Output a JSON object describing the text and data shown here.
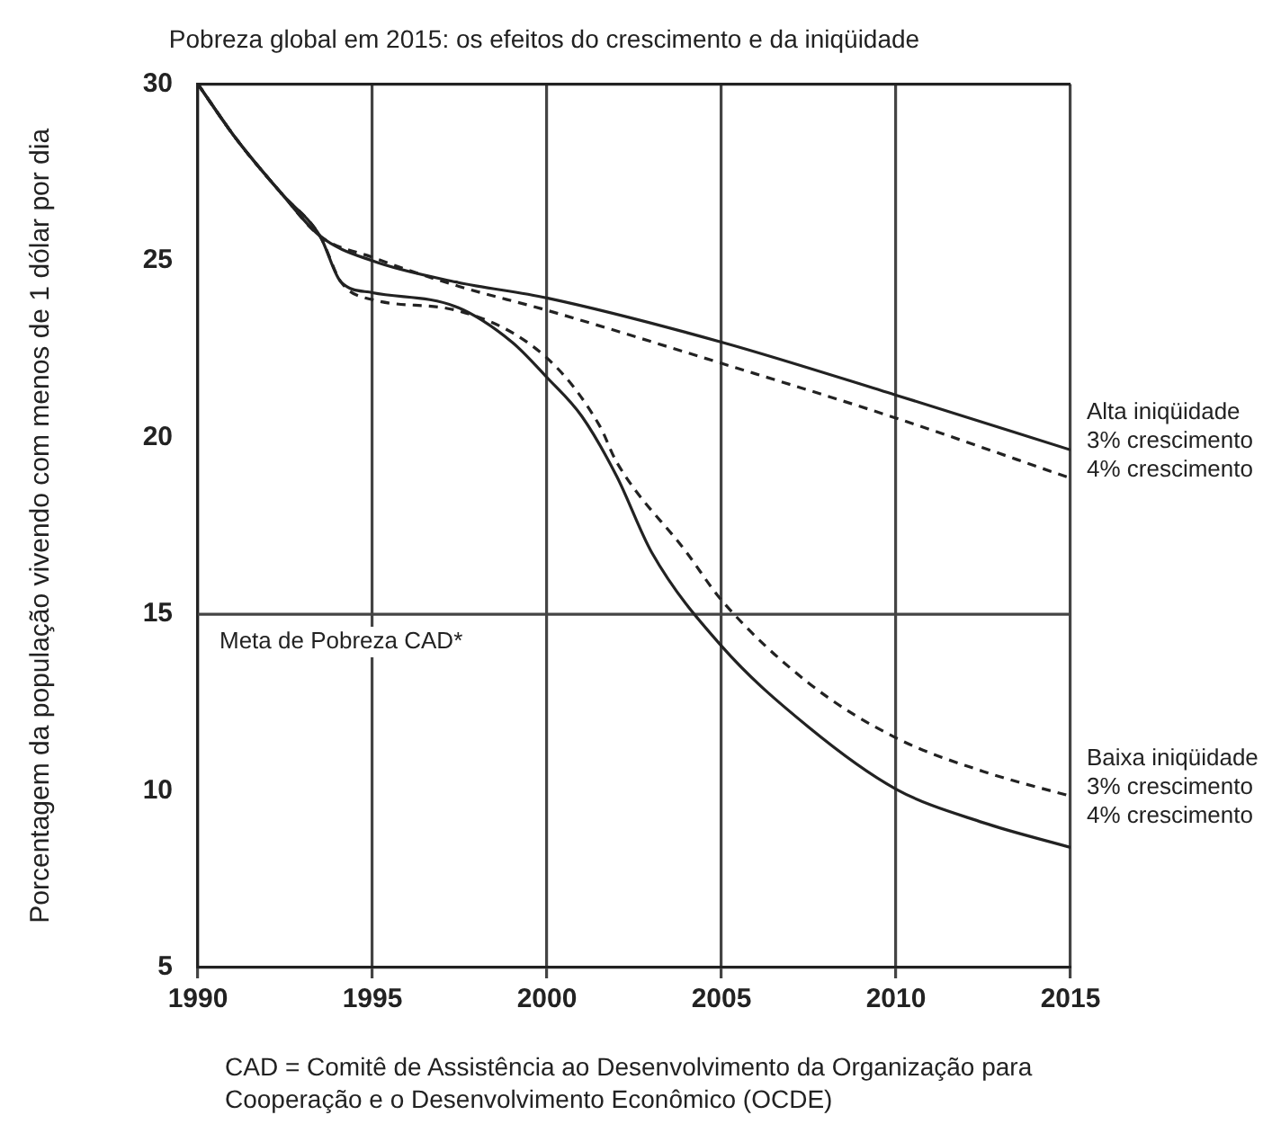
{
  "chart_data": {
    "type": "line",
    "title": "Pobreza global em 2015: os efeitos do crescimento e da iniqüidade",
    "ylabel": "Porcentagem da população vivendo com menos de 1 dólar por dia",
    "xlim": [
      1990,
      2015
    ],
    "xticks": [
      1990,
      1995,
      2000,
      2005,
      2010,
      2015
    ],
    "ylim": [
      5,
      30
    ],
    "yticks": [
      5,
      10,
      15,
      20,
      25,
      30
    ],
    "grid": "x",
    "legend": false,
    "marker": "none",
    "ref_lines": [
      {
        "axis": "y",
        "value": 15,
        "label": "Meta de Pobreza CAD*",
        "color": "#444444"
      }
    ],
    "annotations": [
      {
        "text": "Alta iniqüidade",
        "x": 2015,
        "y": 19.7
      },
      {
        "text": "Baixa iniqüidade",
        "x": 2015,
        "y": 9.9
      },
      "CAD = Comitê de Assistência ao Desenvolvimento da Organização para Cooperação e o Desenvolvimento Econômico (OCDE)"
    ],
    "series": [
      {
        "name": "3% crescimento",
        "color": "#222222",
        "line_style": "solid",
        "x": [
          1990,
          1991.1,
          1992.4,
          1993.5,
          1995,
          1997.4,
          2000,
          2005,
          2010,
          2015
        ],
        "values": [
          30,
          28.45,
          26.9,
          25.7,
          25.0,
          24.4,
          23.95,
          22.7,
          21.2,
          19.65
        ]
      },
      {
        "name": "4% crescimento",
        "color": "#222222",
        "line_style": "dashed",
        "x": [
          1990,
          1991.1,
          1992.4,
          1993.5,
          1995,
          1997.4,
          2000,
          2005,
          2010,
          2015
        ],
        "values": [
          30,
          28.45,
          26.9,
          25.7,
          25.1,
          24.3,
          23.6,
          22.1,
          20.55,
          18.85
        ]
      },
      {
        "name": "3% crescimento",
        "color": "#222222",
        "line_style": "dashed",
        "x": [
          1990,
          1991.1,
          1992.4,
          1993.5,
          1994.1,
          1995,
          1997.4,
          2000,
          2001.5,
          2002,
          2004,
          2005,
          2007.5,
          2010,
          2012.5,
          2015
        ],
        "values": [
          30,
          28.45,
          26.9,
          25.7,
          24.4,
          23.9,
          23.6,
          22.25,
          20.35,
          19.3,
          16.75,
          15.4,
          13.05,
          11.5,
          10.55,
          9.85
        ]
      },
      {
        "name": "4% crescimento",
        "color": "#222222",
        "line_style": "solid",
        "x": [
          1990,
          1991.1,
          1992.4,
          1993.5,
          1994.1,
          1995,
          1997.4,
          1999,
          2000,
          2001,
          2002,
          2003,
          2005,
          2007.5,
          2010,
          2012.5,
          2015
        ],
        "values": [
          30,
          28.45,
          26.9,
          25.7,
          24.4,
          24.1,
          23.7,
          22.7,
          21.7,
          20.6,
          18.9,
          16.75,
          14.1,
          11.8,
          10.05,
          9.1,
          8.4
        ]
      }
    ]
  }
}
